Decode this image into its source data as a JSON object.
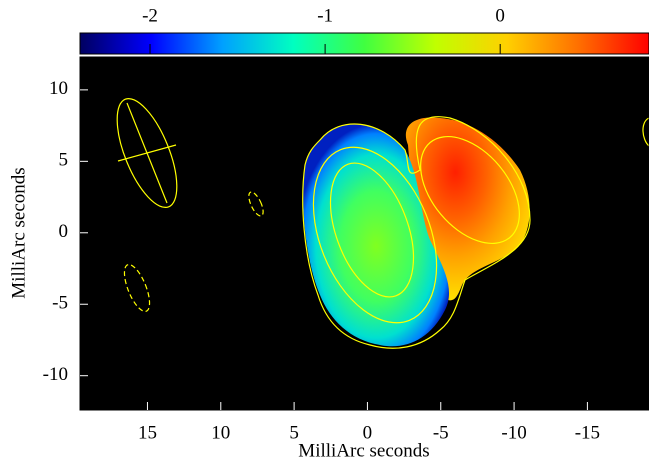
{
  "chart_data": {
    "type": "image",
    "xlabel": "MilliArc seconds",
    "ylabel": "MilliArc seconds",
    "xlim": [
      19.6,
      -19.2
    ],
    "xticks": [
      15,
      10,
      5,
      0,
      -5,
      -10,
      -15
    ],
    "ylim": [
      -12.4,
      12.3
    ],
    "yticks": [
      -10,
      -5,
      0,
      5,
      10
    ],
    "clim": [
      -2.4,
      0.85
    ],
    "cticks": [
      -2,
      -1,
      0
    ],
    "colormap": [
      "#000060",
      "#0000ff",
      "#00a0ff",
      "#00ffc0",
      "#40ff40",
      "#c0ff00",
      "#ffd000",
      "#ff7000",
      "#ff0000"
    ],
    "background": "#000000",
    "contour_color": "#ffff00"
  }
}
